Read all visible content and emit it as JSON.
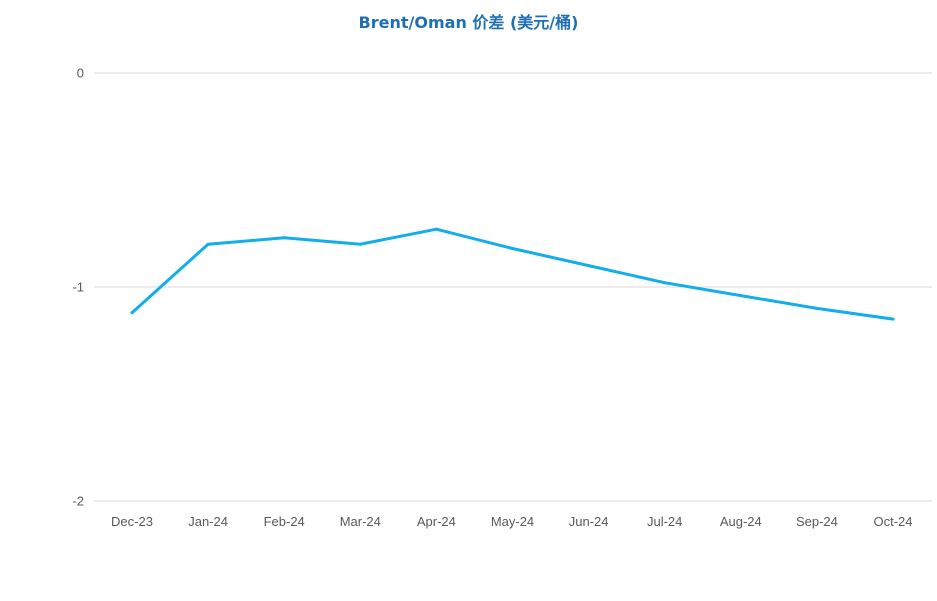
{
  "chart_data": {
    "type": "line",
    "title": "Brent/Oman 价差 (美元/桶)",
    "xlabel": "",
    "ylabel": "",
    "categories": [
      "Dec-23",
      "Jan-24",
      "Feb-24",
      "Mar-24",
      "Apr-24",
      "May-24",
      "Jun-24",
      "Jul-24",
      "Aug-24",
      "Sep-24",
      "Oct-24"
    ],
    "series": [
      {
        "color": "#12AEE9",
        "values": [
          -1.12,
          -0.8,
          -0.77,
          -0.8,
          -0.73,
          -0.82,
          -0.9,
          -0.98,
          -1.04,
          -1.1,
          -1.15
        ]
      }
    ],
    "ylim": [
      -2,
      0
    ],
    "yticks": [
      0,
      -1,
      -2
    ],
    "grid": true,
    "legend": "none"
  }
}
